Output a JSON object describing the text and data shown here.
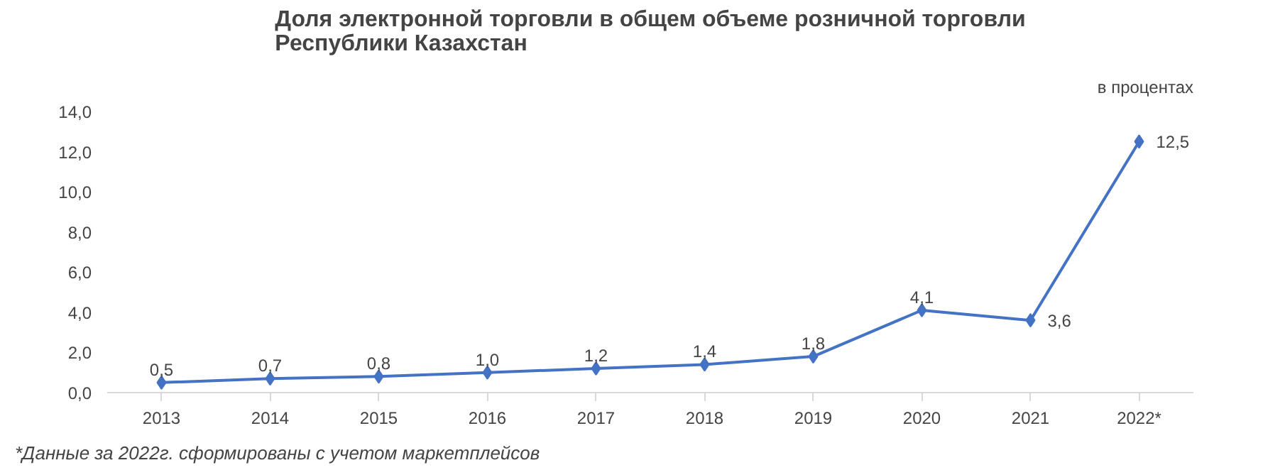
{
  "chart_data": {
    "type": "line",
    "title": "Доля электронной торговли в общем объеме розничной торговли\nРеспублики Казахстан",
    "categories": [
      "2013",
      "2014",
      "2015",
      "2016",
      "2017",
      "2018",
      "2019",
      "2020",
      "2021",
      "2022*"
    ],
    "series": [
      {
        "color": "#4472c4",
        "values": [
          0.5,
          0.7,
          0.8,
          1.0,
          1.2,
          1.4,
          1.8,
          4.1,
          3.6,
          12.5
        ],
        "value_labels": [
          "0,5",
          "0,7",
          "0,8",
          "1,0",
          "1,2",
          "1,4",
          "1,8",
          "4,1",
          "3,6",
          "12,5"
        ]
      }
    ],
    "ylim": [
      0,
      14
    ],
    "yticks": [
      {
        "value": 0,
        "label": "0,0"
      },
      {
        "value": 2,
        "label": "2,0"
      },
      {
        "value": 4,
        "label": "4,0"
      },
      {
        "value": 6,
        "label": "6,0"
      },
      {
        "value": 8,
        "label": "8,0"
      },
      {
        "value": 10,
        "label": "10,0"
      },
      {
        "value": 12,
        "label": "12,0"
      },
      {
        "value": 14,
        "label": "14,0"
      }
    ],
    "annotations": [
      "в процентах",
      "*Данные за 2022г. сформированы с учетом маркетплейсов"
    ],
    "marker": "diamond",
    "line_style": "solid",
    "grid": false
  }
}
